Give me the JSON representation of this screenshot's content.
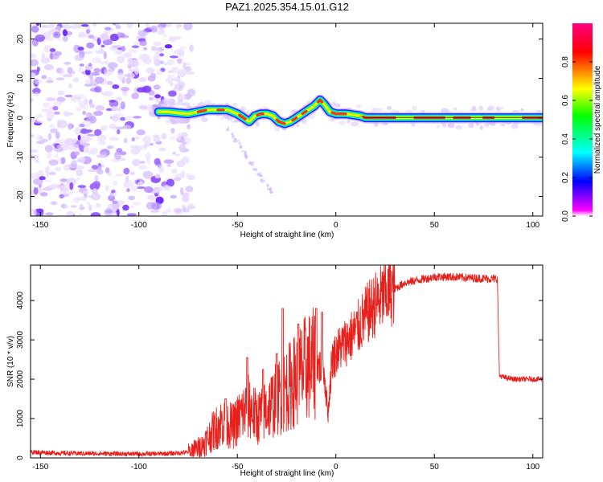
{
  "figure": {
    "title": "PAZ1.2025.354.15.01.G12"
  },
  "colors": {
    "snr_line": "#e8201c",
    "axis": "#000000",
    "colorbar_stops": [
      "#ffffff",
      "#ff00ff",
      "#0000ff",
      "#00ffff",
      "#00ff00",
      "#ffff00",
      "#ff0000",
      "#ff0080"
    ]
  },
  "chart_data": [
    {
      "type": "heatmap",
      "name": "spectrogram",
      "title": "PAZ1.2025.354.15.01.G12",
      "xlabel": "Height of straight line (km)",
      "ylabel": "Frequency (Hz)",
      "xlim": [
        -155,
        105
      ],
      "ylim": [
        -25,
        24
      ],
      "xticks": [
        "-150",
        "-100",
        "-50",
        "0",
        "50",
        "100"
      ],
      "xtick_values": [
        -150,
        -100,
        -50,
        0,
        50,
        100
      ],
      "yticks": [
        "20",
        "10",
        "0",
        "-10",
        "-20"
      ],
      "ytick_values": [
        20,
        10,
        0,
        -10,
        -20
      ],
      "colorbar": {
        "label": "Normalized spectral amplitude",
        "range": [
          0,
          1
        ],
        "ticks": [
          "0.0",
          "0.2",
          "0.4",
          "0.6",
          "0.8"
        ],
        "tick_values": [
          0,
          0.2,
          0.4,
          0.6,
          0.8
        ]
      },
      "noise_region_x": [
        -155,
        -75
      ],
      "signal_track": {
        "x": [
          -90,
          -85,
          -80,
          -75,
          -70,
          -65,
          -60,
          -55,
          -50,
          -47,
          -44,
          -41,
          -38,
          -35,
          -32,
          -29,
          -26,
          -23,
          -20,
          -17,
          -14,
          -11,
          -8,
          -6,
          -3,
          0,
          5,
          12,
          15,
          30,
          60,
          90,
          105
        ],
        "frequency": [
          1.5,
          1.5,
          1.2,
          1.0,
          1.5,
          2.0,
          2.0,
          2.0,
          1.0,
          0.0,
          -1.0,
          0.5,
          1.0,
          1.0,
          0.5,
          -1.0,
          -1.5,
          -1.0,
          0.0,
          1.0,
          2.0,
          3.0,
          4.5,
          3.5,
          1.5,
          1.0,
          1.0,
          0.5,
          0.0,
          0.0,
          0.0,
          0.0,
          0.0
        ]
      },
      "faint_trail": {
        "x": [
          -56,
          -50,
          -44,
          -38,
          -32
        ],
        "frequency": [
          -2,
          -6,
          -11,
          -15,
          -19
        ]
      }
    },
    {
      "type": "line",
      "name": "snr",
      "xlabel": "Height of straight line (km)",
      "ylabel": "SNR (10 * v/v)",
      "xlim": [
        -155,
        105
      ],
      "ylim": [
        0,
        4900
      ],
      "xticks": [
        "-150",
        "-100",
        "-50",
        "0",
        "50",
        "100"
      ],
      "xtick_values": [
        -150,
        -100,
        -50,
        0,
        50,
        100
      ],
      "yticks": [
        "0",
        "1000",
        "2000",
        "3000",
        "4000"
      ],
      "ytick_values": [
        0,
        1000,
        2000,
        3000,
        4000
      ],
      "series": [
        {
          "name": "SNR",
          "x": [
            -155,
            -140,
            -120,
            -100,
            -85,
            -75,
            -68,
            -62,
            -58,
            -52,
            -48,
            -44,
            -40,
            -36,
            -32,
            -28,
            -24,
            -20,
            -15,
            -10,
            -6,
            -4,
            -2,
            2,
            6,
            10,
            15,
            20,
            25,
            30,
            35,
            40,
            45,
            50,
            55,
            60,
            65,
            70,
            75,
            80,
            82,
            83,
            85,
            90,
            95,
            100,
            105
          ],
          "values": [
            150,
            120,
            110,
            100,
            110,
            140,
            300,
            700,
            900,
            800,
            1100,
            1300,
            1000,
            1200,
            1400,
            1600,
            1800,
            2000,
            2300,
            2400,
            2200,
            1100,
            2500,
            2800,
            3000,
            3200,
            3600,
            3900,
            4150,
            4300,
            4450,
            4500,
            4550,
            4600,
            4600,
            4600,
            4580,
            4570,
            4560,
            4550,
            4550,
            2100,
            2050,
            2000,
            2000,
            2000,
            2000
          ]
        }
      ],
      "spikes": {
        "x": [
          -56,
          -45,
          -37,
          -30,
          -27,
          -19,
          -10,
          -7
        ],
        "values": [
          1500,
          2550,
          2250,
          2650,
          3800,
          3400,
          3800,
          3700
        ]
      }
    }
  ]
}
